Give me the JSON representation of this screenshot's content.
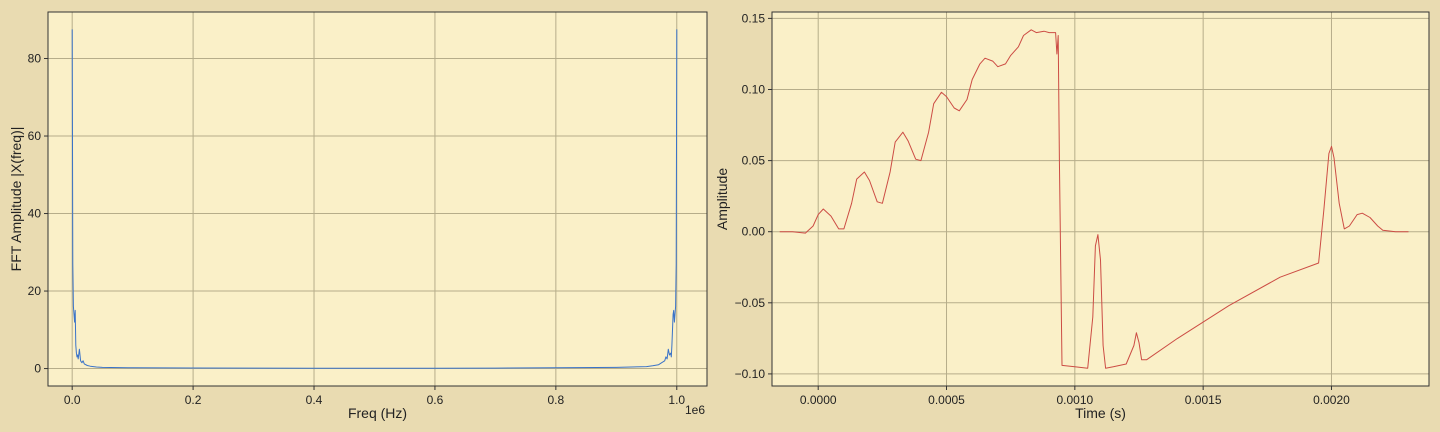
{
  "colors": {
    "figure_bg": "#e9dbb1",
    "axes_bg": "#faf0c8",
    "grid": "#b6ad8a",
    "fft_line": "#3a73c8",
    "time_line": "#cc4c44"
  },
  "chart_data": [
    {
      "type": "line",
      "title": "",
      "xlabel": "Freq (Hz)",
      "ylabel": "FFT Amplitude |X(freq)|",
      "x_offset_text": "1e6",
      "xlim": [
        -0.04,
        1.05
      ],
      "ylim": [
        -4.5,
        92
      ],
      "xticks": [
        0.0,
        0.2,
        0.4,
        0.6,
        0.8,
        1.0
      ],
      "xtick_labels": [
        "0.0",
        "0.2",
        "0.4",
        "0.6",
        "0.8",
        "1.0"
      ],
      "yticks": [
        0,
        20,
        40,
        60,
        80
      ],
      "ytick_labels": [
        "0",
        "20",
        "40",
        "60",
        "80"
      ],
      "grid": true,
      "series": [
        {
          "color": "#3a73c8",
          "x": [
            0.0,
            0.001,
            0.002,
            0.003,
            0.004,
            0.005,
            0.006,
            0.007,
            0.008,
            0.009,
            0.01,
            0.012,
            0.014,
            0.016,
            0.018,
            0.02,
            0.025,
            0.03,
            0.04,
            0.05,
            0.1,
            0.2,
            0.3,
            0.4,
            0.5,
            0.6,
            0.7,
            0.8,
            0.9,
            0.95,
            0.96,
            0.97,
            0.975,
            0.98,
            0.982,
            0.984,
            0.986,
            0.988,
            0.99,
            0.991,
            0.992,
            0.993,
            0.994,
            0.995,
            0.996,
            0.997,
            0.998,
            0.999,
            1.0
          ],
          "y": [
            87.5,
            27,
            16,
            14,
            12,
            15,
            6,
            4,
            3,
            3.5,
            2.5,
            5,
            2,
            1.5,
            2,
            1.2,
            0.8,
            0.6,
            0.4,
            0.3,
            0.2,
            0.15,
            0.12,
            0.1,
            0.1,
            0.1,
            0.12,
            0.2,
            0.3,
            0.5,
            0.7,
            1.0,
            1.5,
            2.0,
            3,
            2.5,
            5,
            3.5,
            4,
            3,
            6,
            10,
            14,
            15,
            12,
            14,
            16,
            27,
            87.5
          ]
        }
      ]
    },
    {
      "type": "line",
      "title": "",
      "xlabel": "Time (s)",
      "ylabel": "Amplitude",
      "xlim": [
        -0.00018,
        0.00238
      ],
      "ylim": [
        -0.1085,
        0.1545
      ],
      "xticks": [
        0.0,
        0.0005,
        0.001,
        0.0015,
        0.002
      ],
      "xtick_labels": [
        "0.0000",
        "0.0005",
        "0.0010",
        "0.0015",
        "0.0020"
      ],
      "yticks": [
        -0.1,
        -0.05,
        0.0,
        0.05,
        0.1,
        0.15
      ],
      "ytick_labels": [
        "−0.10",
        "−0.05",
        "0.00",
        "0.05",
        "0.10",
        "0.15"
      ],
      "grid": true,
      "series": [
        {
          "color": "#cc4c44",
          "x": [
            -0.00015,
            -0.0001,
            -5e-05,
            -2e-05,
            0.0,
            2e-05,
            5e-05,
            8e-05,
            0.0001,
            0.00013,
            0.00015,
            0.00018,
            0.0002,
            0.00023,
            0.00025,
            0.00028,
            0.0003,
            0.00033,
            0.00035,
            0.00038,
            0.0004,
            0.00043,
            0.00045,
            0.00048,
            0.0005,
            0.00053,
            0.00055,
            0.00058,
            0.0006,
            0.00063,
            0.00065,
            0.00068,
            0.0007,
            0.00073,
            0.00075,
            0.00078,
            0.0008,
            0.00083,
            0.00085,
            0.00088,
            0.0009,
            0.000925,
            0.00093,
            0.000935,
            0.00094,
            0.00095,
            0.001,
            0.00105,
            0.00107,
            0.00108,
            0.00109,
            0.0011,
            0.00111,
            0.00112,
            0.00115,
            0.0012,
            0.00123,
            0.00124,
            0.00125,
            0.00126,
            0.00128,
            0.0014,
            0.0016,
            0.0018,
            0.00195,
            0.00197,
            0.00199,
            0.002,
            0.00201,
            0.00203,
            0.00205,
            0.00207,
            0.0021,
            0.00212,
            0.00215,
            0.00218,
            0.0022,
            0.00225,
            0.0023
          ],
          "y": [
            0.0,
            0.0,
            -0.001,
            0.004,
            0.012,
            0.016,
            0.011,
            0.002,
            0.002,
            0.02,
            0.037,
            0.042,
            0.036,
            0.021,
            0.02,
            0.042,
            0.063,
            0.07,
            0.064,
            0.051,
            0.05,
            0.07,
            0.09,
            0.098,
            0.095,
            0.087,
            0.085,
            0.093,
            0.107,
            0.118,
            0.122,
            0.12,
            0.116,
            0.118,
            0.124,
            0.13,
            0.138,
            0.142,
            0.14,
            0.141,
            0.14,
            0.14,
            0.125,
            0.138,
            0.05,
            -0.094,
            -0.095,
            -0.096,
            -0.06,
            -0.01,
            -0.002,
            -0.02,
            -0.08,
            -0.096,
            -0.095,
            -0.093,
            -0.08,
            -0.071,
            -0.078,
            -0.09,
            -0.09,
            -0.075,
            -0.052,
            -0.032,
            -0.022,
            0.015,
            0.055,
            0.06,
            0.052,
            0.02,
            0.002,
            0.004,
            0.012,
            0.013,
            0.01,
            0.004,
            0.001,
            0.0,
            0.0
          ]
        }
      ]
    }
  ]
}
